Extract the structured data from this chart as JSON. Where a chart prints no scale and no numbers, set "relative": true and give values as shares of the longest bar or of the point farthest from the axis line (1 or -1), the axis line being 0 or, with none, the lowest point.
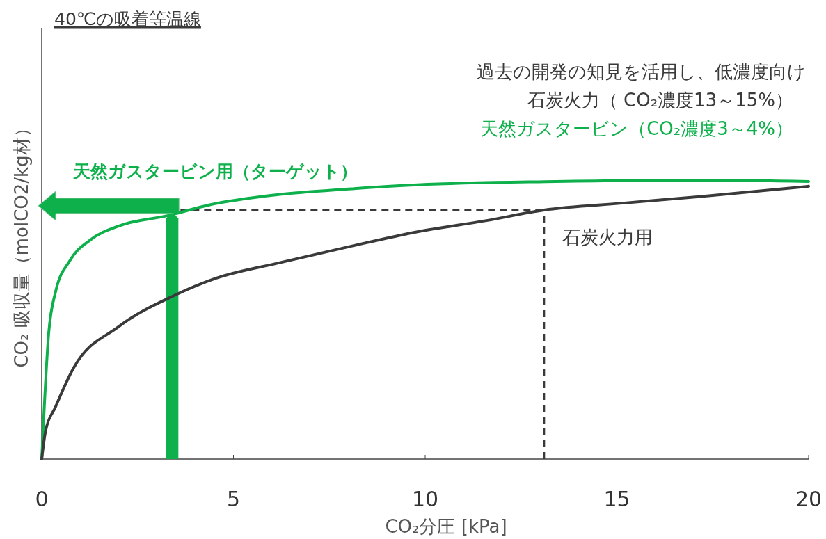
{
  "chart_data": {
    "type": "line",
    "title": "40℃の吸着等温線",
    "xlabel": "CO₂分圧 [kPa]",
    "ylabel": "CO₂ 吸収量（molCO2/kg材）",
    "relative": true,
    "xlim": [
      0,
      20
    ],
    "xticks": [
      0,
      5,
      10,
      15,
      20
    ],
    "line_style": "solid",
    "annotations": [
      "過去の開発の知見を活用し、低濃度向け",
      "石炭火力（ CO₂濃度13～15%）",
      "天然ガスタービン（CO₂濃度3～4%）"
    ],
    "ref_lines": [
      {
        "axis": "x",
        "value": 3.4,
        "color": "#0db04b",
        "line_style": "solid"
      },
      {
        "axis": "x",
        "value": 13.1,
        "color": "#3a3a3a",
        "line_style": "dashed"
      },
      {
        "axis": "y",
        "value": 0.893,
        "color": "#3a3a3a",
        "line_style": "dashed"
      }
    ],
    "series": [
      {
        "name": "天然ガスタービン用（ターゲット）",
        "color": "#0db04b",
        "x": [
          0,
          0.18,
          0.36,
          0.73,
          1.27,
          2,
          3.3,
          4.36,
          6.17,
          8,
          9.8,
          13.4,
          17.1,
          20
        ],
        "values": [
          0,
          0.449,
          0.599,
          0.711,
          0.786,
          0.835,
          0.873,
          0.911,
          0.948,
          0.968,
          0.983,
          0.995,
          1,
          0.995
        ]
      },
      {
        "name": "石炭火力用",
        "color": "#3a3a3a",
        "x": [
          0,
          0.1,
          0.36,
          0.82,
          2,
          3.45,
          4.54,
          6.17,
          8,
          9.8,
          11.6,
          13.1,
          15.2,
          17.1,
          20
        ],
        "values": [
          0,
          0.1,
          0.187,
          0.324,
          0.474,
          0.586,
          0.648,
          0.703,
          0.761,
          0.815,
          0.855,
          0.893,
          0.918,
          0.94,
          0.978
        ]
      }
    ]
  }
}
